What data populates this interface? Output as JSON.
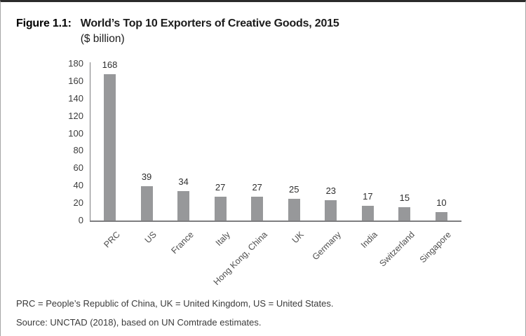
{
  "figure": {
    "label": "Figure 1.1:",
    "title": "World’s Top 10 Exporters of Creative Goods, 2015",
    "subtitle": "($ billion)"
  },
  "chart_data": {
    "type": "bar",
    "title": "World’s Top 10 Exporters of Creative Goods, 2015 ($ billion)",
    "categories": [
      "PRC",
      "US",
      "France",
      "Italy",
      "Hong Kong, China",
      "UK",
      "Germany",
      "India",
      "Switzerland",
      "Singapore"
    ],
    "values": [
      168,
      39,
      34,
      27,
      27,
      25,
      23,
      17,
      15,
      10
    ],
    "xlabel": "",
    "ylabel": "",
    "ylim": [
      0,
      180
    ],
    "ytick_step": 20,
    "grid": false,
    "legend": false,
    "data_labels": true,
    "bar_color": "#97989a",
    "axis_color": "#7d7d7f"
  },
  "footnotes": {
    "abbreviations": "PRC = People’s Republic of China, UK = United Kingdom, US = United States.",
    "source": "Source: UNCTAD (2018), based on UN Comtrade estimates."
  }
}
